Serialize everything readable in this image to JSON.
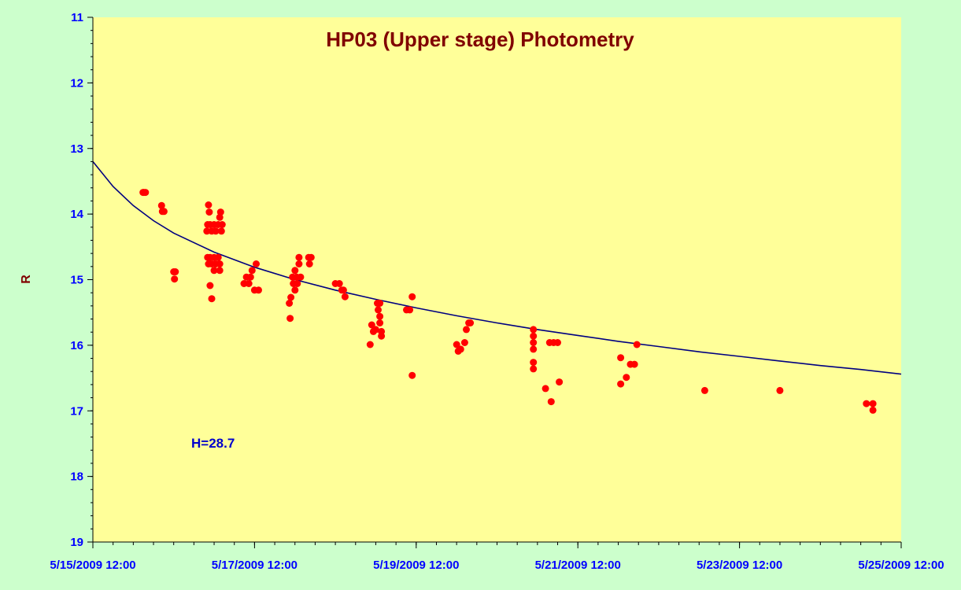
{
  "chart_data": {
    "type": "scatter",
    "title": "HP03 (Upper stage) Photometry",
    "xlabel": "",
    "ylabel": "R",
    "annotation": "H=28.7",
    "x_axis": {
      "unit": "days",
      "range": [
        0,
        10
      ],
      "tick_labels": [
        "5/15/2009 12:00",
        "5/17/2009 12:00",
        "5/19/2009 12:00",
        "5/21/2009 12:00",
        "5/23/2009 12:00",
        "5/25/2009 12:00"
      ],
      "major_ticks": [
        0,
        2,
        4,
        6,
        8,
        10
      ],
      "minor_step": 0.25
    },
    "y_axis": {
      "range": [
        11,
        19
      ],
      "reversed": true,
      "tick_values": [
        11,
        12,
        13,
        14,
        15,
        16,
        17,
        18,
        19
      ],
      "minor_step": 0.2
    },
    "grid": false,
    "legend": "none",
    "colors": {
      "plot_background": "#ffff99",
      "page_background": "#ccffcc",
      "points": "#ff0000",
      "fit_line": "#000080",
      "tick_labels": "#0000ff",
      "title": "#800000"
    },
    "series": [
      {
        "values": [
          [
            0.62,
            13.67
          ],
          [
            0.63,
            13.67
          ],
          [
            0.65,
            13.67
          ],
          [
            0.85,
            13.87
          ],
          [
            0.86,
            13.96
          ],
          [
            0.88,
            13.96
          ],
          [
            1.0,
            14.88
          ],
          [
            1.01,
            14.99
          ],
          [
            1.02,
            14.88
          ],
          [
            1.43,
            13.86
          ],
          [
            1.44,
            13.97
          ],
          [
            1.42,
            14.16
          ],
          [
            1.41,
            14.26
          ],
          [
            1.45,
            14.16
          ],
          [
            1.47,
            14.26
          ],
          [
            1.5,
            14.16
          ],
          [
            1.52,
            14.26
          ],
          [
            1.55,
            14.16
          ],
          [
            1.57,
            14.05
          ],
          [
            1.58,
            13.97
          ],
          [
            1.6,
            14.16
          ],
          [
            1.59,
            14.26
          ],
          [
            1.42,
            14.66
          ],
          [
            1.43,
            14.76
          ],
          [
            1.45,
            14.66
          ],
          [
            1.47,
            14.76
          ],
          [
            1.5,
            14.66
          ],
          [
            1.5,
            14.86
          ],
          [
            1.52,
            14.76
          ],
          [
            1.55,
            14.66
          ],
          [
            1.57,
            14.76
          ],
          [
            1.57,
            14.86
          ],
          [
            1.45,
            15.09
          ],
          [
            1.47,
            15.29
          ],
          [
            1.87,
            15.06
          ],
          [
            1.9,
            14.96
          ],
          [
            1.93,
            15.06
          ],
          [
            1.95,
            14.96
          ],
          [
            1.97,
            14.86
          ],
          [
            2.0,
            15.16
          ],
          [
            2.02,
            14.76
          ],
          [
            2.05,
            15.16
          ],
          [
            2.43,
            15.36
          ],
          [
            2.44,
            15.59
          ],
          [
            2.45,
            15.27
          ],
          [
            2.47,
            14.96
          ],
          [
            2.48,
            15.06
          ],
          [
            2.5,
            14.86
          ],
          [
            2.52,
            14.96
          ],
          [
            2.53,
            15.06
          ],
          [
            2.5,
            15.16
          ],
          [
            2.55,
            14.66
          ],
          [
            2.57,
            14.96
          ],
          [
            2.55,
            14.76
          ],
          [
            2.67,
            14.66
          ],
          [
            2.68,
            14.76
          ],
          [
            2.7,
            14.66
          ],
          [
            3.0,
            15.06
          ],
          [
            3.05,
            15.06
          ],
          [
            3.08,
            15.16
          ],
          [
            3.1,
            15.16
          ],
          [
            3.12,
            15.26
          ],
          [
            3.43,
            15.99
          ],
          [
            3.45,
            15.69
          ],
          [
            3.47,
            15.79
          ],
          [
            3.5,
            15.76
          ],
          [
            3.52,
            15.36
          ],
          [
            3.53,
            15.46
          ],
          [
            3.55,
            15.56
          ],
          [
            3.55,
            15.66
          ],
          [
            3.57,
            15.79
          ],
          [
            3.57,
            15.86
          ],
          [
            3.55,
            15.36
          ],
          [
            3.88,
            15.46
          ],
          [
            3.92,
            15.46
          ],
          [
            3.95,
            15.26
          ],
          [
            3.95,
            16.46
          ],
          [
            4.5,
            15.99
          ],
          [
            4.52,
            16.09
          ],
          [
            4.55,
            16.06
          ],
          [
            4.6,
            15.96
          ],
          [
            4.62,
            15.76
          ],
          [
            4.65,
            15.66
          ],
          [
            4.67,
            15.66
          ],
          [
            5.45,
            15.76
          ],
          [
            5.45,
            15.86
          ],
          [
            5.45,
            15.96
          ],
          [
            5.45,
            16.06
          ],
          [
            5.45,
            16.26
          ],
          [
            5.45,
            16.36
          ],
          [
            5.6,
            16.66
          ],
          [
            5.65,
            15.96
          ],
          [
            5.67,
            16.86
          ],
          [
            5.7,
            15.96
          ],
          [
            5.75,
            15.96
          ],
          [
            5.77,
            16.56
          ],
          [
            6.53,
            16.19
          ],
          [
            6.53,
            16.59
          ],
          [
            6.6,
            16.49
          ],
          [
            6.65,
            16.29
          ],
          [
            6.7,
            16.29
          ],
          [
            6.73,
            15.99
          ],
          [
            7.57,
            16.69
          ],
          [
            8.5,
            16.69
          ],
          [
            9.57,
            16.89
          ],
          [
            9.65,
            16.89
          ],
          [
            9.65,
            16.99
          ]
        ]
      }
    ],
    "fit_curve": {
      "x": [
        0,
        0.25,
        0.5,
        0.75,
        1,
        1.5,
        2,
        2.5,
        3,
        3.5,
        4,
        4.5,
        5,
        5.5,
        6,
        6.5,
        7,
        7.5,
        8,
        8.5,
        9,
        9.5,
        10
      ],
      "y": [
        13.2,
        13.58,
        13.87,
        14.1,
        14.29,
        14.58,
        14.81,
        15.0,
        15.16,
        15.3,
        15.43,
        15.55,
        15.66,
        15.76,
        15.85,
        15.94,
        16.02,
        16.1,
        16.17,
        16.24,
        16.31,
        16.37,
        16.44
      ]
    }
  }
}
